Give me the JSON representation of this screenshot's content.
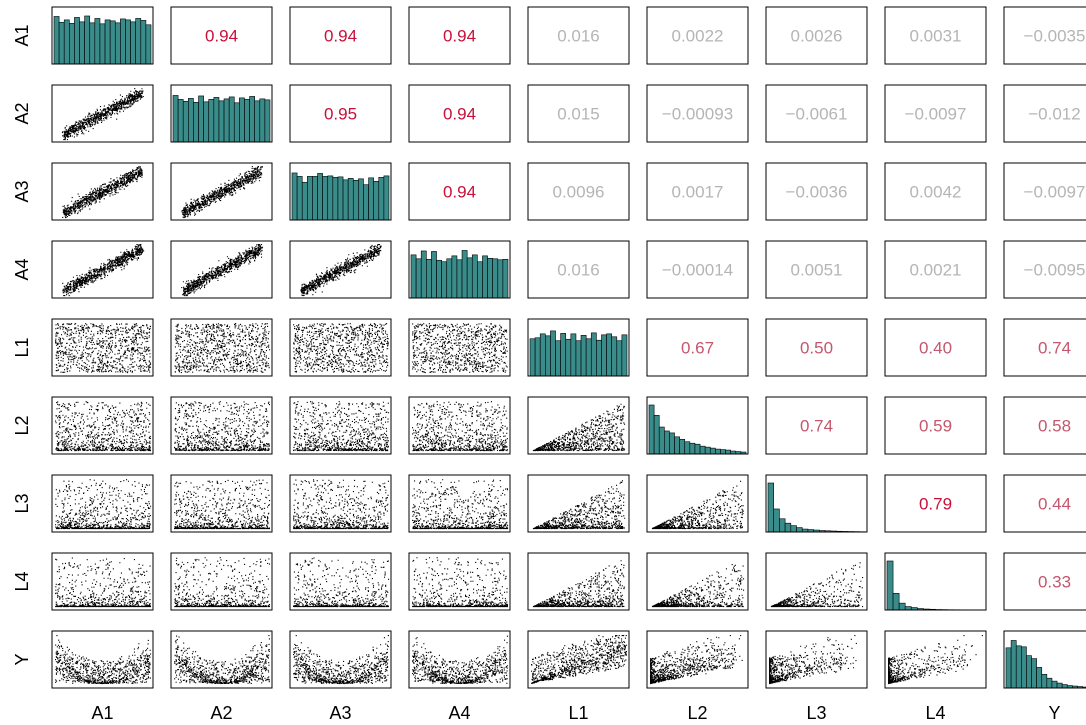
{
  "chart_data": {
    "type": "pairs-plot",
    "variables": [
      "A1",
      "A2",
      "A3",
      "A4",
      "L1",
      "L2",
      "L3",
      "L4",
      "Y"
    ],
    "correlations": [
      [
        null,
        0.94,
        0.94,
        0.94,
        0.016,
        0.0022,
        0.0026,
        0.0031,
        -0.0035
      ],
      [
        null,
        null,
        0.95,
        0.94,
        0.015,
        -0.00093,
        -0.0061,
        -0.0097,
        -0.012
      ],
      [
        null,
        null,
        null,
        0.94,
        0.0096,
        0.0017,
        -0.0036,
        0.0042,
        -0.0097
      ],
      [
        null,
        null,
        null,
        null,
        0.016,
        -0.00014,
        0.0051,
        0.0021,
        -0.0095
      ],
      [
        null,
        null,
        null,
        null,
        null,
        0.67,
        0.5,
        0.4,
        0.74
      ],
      [
        null,
        null,
        null,
        null,
        null,
        null,
        0.74,
        0.59,
        0.58
      ],
      [
        null,
        null,
        null,
        null,
        null,
        null,
        null,
        0.79,
        0.44
      ],
      [
        null,
        null,
        null,
        null,
        null,
        null,
        null,
        null,
        0.33
      ],
      [
        null,
        null,
        null,
        null,
        null,
        null,
        null,
        null,
        null
      ]
    ],
    "correlation_labels": [
      [
        null,
        "0.94",
        "0.94",
        "0.94",
        "0.016",
        "0.0022",
        "0.0026",
        "0.0031",
        "−0.0035"
      ],
      [
        null,
        null,
        "0.95",
        "0.94",
        "0.015",
        "−0.00093",
        "−0.0061",
        "−0.0097",
        "−0.012"
      ],
      [
        null,
        null,
        null,
        "0.94",
        "0.0096",
        "0.0017",
        "−0.0036",
        "0.0042",
        "−0.0097"
      ],
      [
        null,
        null,
        null,
        null,
        "0.016",
        "−0.00014",
        "0.0051",
        "0.0021",
        "−0.0095"
      ],
      [
        null,
        null,
        null,
        null,
        null,
        "0.67",
        "0.50",
        "0.40",
        "0.74"
      ],
      [
        null,
        null,
        null,
        null,
        null,
        null,
        "0.74",
        "0.59",
        "0.58"
      ],
      [
        null,
        null,
        null,
        null,
        null,
        null,
        null,
        "0.79",
        "0.44"
      ],
      [
        null,
        null,
        null,
        null,
        null,
        null,
        null,
        null,
        "0.33"
      ],
      [
        null,
        null,
        null,
        null,
        null,
        null,
        null,
        null,
        null
      ]
    ],
    "histograms": {
      "A1": [
        0.97,
        0.85,
        0.9,
        0.83,
        0.95,
        0.86,
        0.98,
        0.84,
        0.93,
        0.82,
        0.9,
        0.88,
        0.84,
        0.92,
        0.9,
        0.86,
        0.93,
        0.89,
        0.8
      ],
      "A2": [
        0.95,
        0.87,
        0.83,
        0.89,
        0.81,
        0.94,
        0.82,
        0.87,
        0.91,
        0.84,
        0.88,
        0.92,
        0.8,
        0.9,
        0.87,
        0.93,
        0.84,
        0.88,
        0.86
      ],
      "A3": [
        0.96,
        0.89,
        0.77,
        0.89,
        0.89,
        0.95,
        0.89,
        0.9,
        0.87,
        0.88,
        0.82,
        0.85,
        0.81,
        0.84,
        0.72,
        0.86,
        0.79,
        0.87,
        0.9
      ],
      "A4": [
        0.88,
        0.8,
        0.96,
        0.79,
        0.95,
        0.77,
        0.74,
        0.8,
        0.86,
        0.78,
        0.97,
        0.82,
        0.88,
        0.74,
        0.86,
        0.81,
        0.8,
        0.78,
        0.79
      ],
      "L1": [
        0.76,
        0.78,
        0.86,
        0.82,
        0.92,
        0.72,
        0.87,
        0.75,
        0.86,
        0.72,
        0.83,
        0.76,
        0.88,
        0.73,
        0.84,
        0.86,
        0.8,
        0.72,
        0.84
      ],
      "L2": [
        1.0,
        0.79,
        0.55,
        0.47,
        0.43,
        0.35,
        0.3,
        0.25,
        0.22,
        0.2,
        0.16,
        0.14,
        0.12,
        0.1,
        0.09,
        0.08,
        0.06,
        0.05,
        0.04
      ],
      "L3": [
        1.0,
        0.47,
        0.27,
        0.18,
        0.13,
        0.09,
        0.06,
        0.05,
        0.04,
        0.03,
        0.025,
        0.02,
        0.015,
        0.012,
        0.01,
        0.008,
        0.006
      ],
      "L4": [
        1.0,
        0.34,
        0.14,
        0.07,
        0.05,
        0.03,
        0.02,
        0.015,
        0.01,
        0.008,
        0.006,
        0.005,
        0.004,
        0.003,
        0.002,
        0.002
      ],
      "Y": [
        0.82,
        0.97,
        0.86,
        0.84,
        0.66,
        0.6,
        0.42,
        0.28,
        0.2,
        0.14,
        0.1,
        0.07,
        0.05,
        0.04,
        0.03,
        0.02,
        0.015,
        0.01,
        0.008
      ]
    },
    "scatter_shapes": {
      "A-A": "strong positive linear (r≈0.94)",
      "A-L": "uniform cloud, no association",
      "A-Y": "U-shaped",
      "L-L": "triangular, positive",
      "L-Y": "positive, fanning"
    },
    "colors": {
      "histogram_fill": "#3a8c8a",
      "strong_corr": "#c8103a",
      "medium_corr": "#c4576e",
      "weak_corr": "#b5b5b5",
      "points": "#000000"
    }
  }
}
